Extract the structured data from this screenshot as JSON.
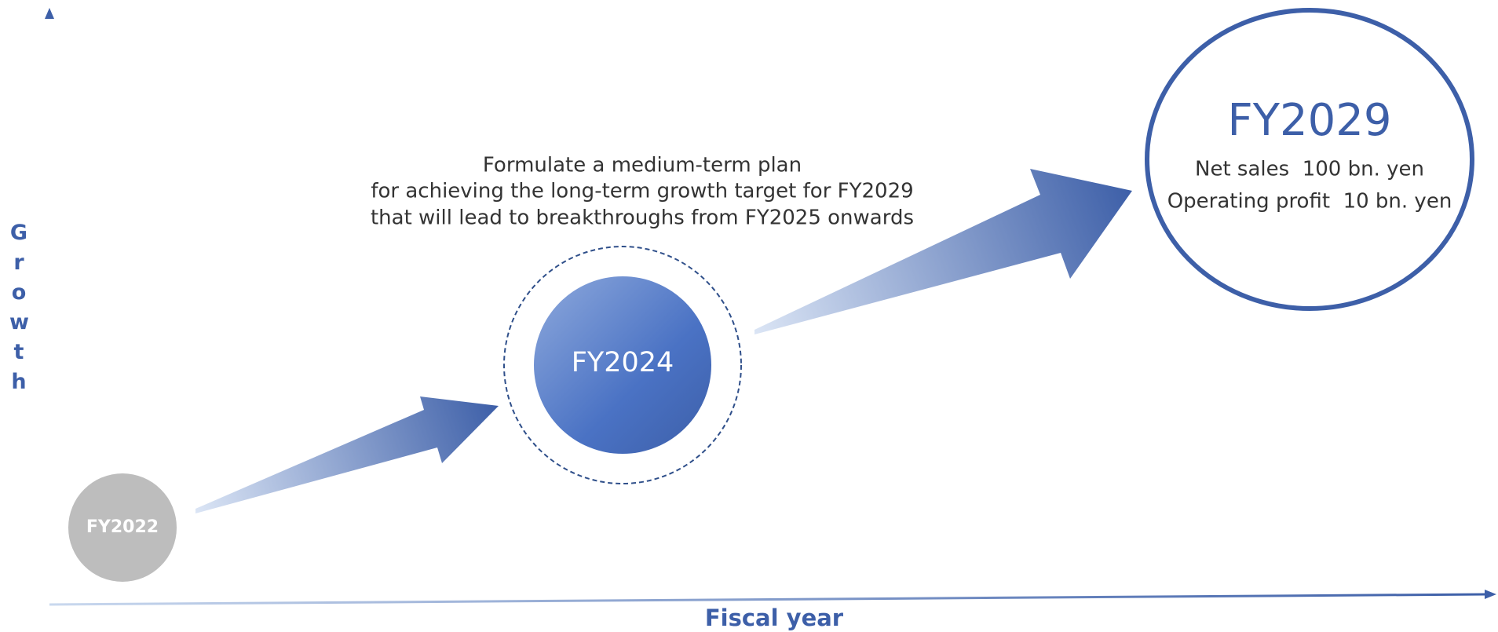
{
  "axes": {
    "y_label": "Growth",
    "x_label": "Fiscal year"
  },
  "nodes": [
    {
      "label": "FY2022"
    },
    {
      "label": "FY2024"
    },
    {
      "label": "FY2029",
      "lines": [
        "Net sales  100 bn. yen",
        "Operating profit  10 bn. yen"
      ]
    }
  ],
  "description": [
    "Formulate a medium-term plan",
    "for achieving the long-term growth target for FY2029",
    "that will lead to breakthroughs from FY2025 onwards"
  ]
}
